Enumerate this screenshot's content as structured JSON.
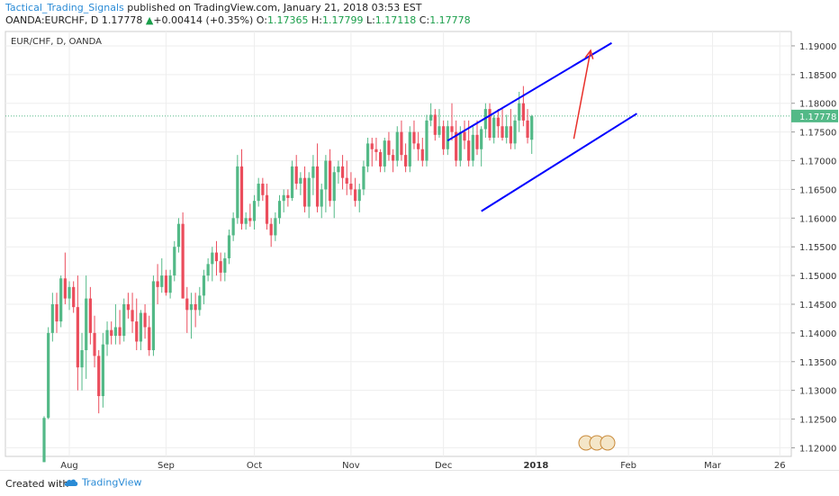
{
  "header": {
    "author": "Tactical_Trading_Signals",
    "published_text": "published on TradingView.com, January 21, 2018 03:53 EST",
    "symbol": "OANDA:EURCHF, D",
    "last": "1.17778",
    "change_arrow": "▲",
    "change": "+0.00414 (+0.35%)",
    "o_label": "O:",
    "o": "1.17365",
    "h_label": "H:",
    "h": "1.17799",
    "l_label": "L:",
    "l": "1.17118",
    "c_label": "C:",
    "c": "1.17778"
  },
  "chart_data": {
    "type": "candlestick",
    "title": "EUR/CHF, D, OANDA",
    "ylim": [
      1.1185,
      1.1925
    ],
    "y_ticks": [
      "1.19000",
      "1.18500",
      "1.18000",
      "1.17500",
      "1.17000",
      "1.16500",
      "1.16000",
      "1.15500",
      "1.15000",
      "1.14500",
      "1.14000",
      "1.13500",
      "1.13000",
      "1.12500",
      "1.12000"
    ],
    "x_ticks": [
      {
        "label": "Aug",
        "index": 6
      },
      {
        "label": "Sep",
        "index": 29
      },
      {
        "label": "Oct",
        "index": 50
      },
      {
        "label": "Nov",
        "index": 73
      },
      {
        "label": "Dec",
        "index": 95
      },
      {
        "label": "2018",
        "index": 117
      },
      {
        "label": "Feb",
        "index": 139
      },
      {
        "label": "Mar",
        "index": 159
      },
      {
        "label": "26",
        "index": 175
      }
    ],
    "last_price_label": "1.17778",
    "colors": {
      "up": "#53b987",
      "down": "#eb4d5c",
      "channel": "#0000ff",
      "arrow": "#e8302a",
      "grid": "#eeeeee",
      "price_line": "#53b987"
    },
    "candles": [
      {
        "o": 1.1175,
        "h": 1.1255,
        "l": 1.1175,
        "c": 1.1252
      },
      {
        "o": 1.1252,
        "h": 1.141,
        "l": 1.125,
        "c": 1.14
      },
      {
        "o": 1.14,
        "h": 1.147,
        "l": 1.1385,
        "c": 1.145
      },
      {
        "o": 1.145,
        "h": 1.147,
        "l": 1.14,
        "c": 1.142
      },
      {
        "o": 1.142,
        "h": 1.15,
        "l": 1.141,
        "c": 1.1495
      },
      {
        "o": 1.1495,
        "h": 1.154,
        "l": 1.145,
        "c": 1.146
      },
      {
        "o": 1.146,
        "h": 1.149,
        "l": 1.144,
        "c": 1.148
      },
      {
        "o": 1.148,
        "h": 1.149,
        "l": 1.1435,
        "c": 1.1445
      },
      {
        "o": 1.1445,
        "h": 1.15,
        "l": 1.13,
        "c": 1.134
      },
      {
        "o": 1.134,
        "h": 1.14,
        "l": 1.13,
        "c": 1.137
      },
      {
        "o": 1.137,
        "h": 1.15,
        "l": 1.132,
        "c": 1.146
      },
      {
        "o": 1.146,
        "h": 1.148,
        "l": 1.138,
        "c": 1.14
      },
      {
        "o": 1.14,
        "h": 1.143,
        "l": 1.134,
        "c": 1.136
      },
      {
        "o": 1.136,
        "h": 1.137,
        "l": 1.126,
        "c": 1.129
      },
      {
        "o": 1.129,
        "h": 1.14,
        "l": 1.127,
        "c": 1.138
      },
      {
        "o": 1.138,
        "h": 1.142,
        "l": 1.136,
        "c": 1.1405
      },
      {
        "o": 1.1405,
        "h": 1.142,
        "l": 1.138,
        "c": 1.1395
      },
      {
        "o": 1.1395,
        "h": 1.145,
        "l": 1.138,
        "c": 1.141
      },
      {
        "o": 1.141,
        "h": 1.144,
        "l": 1.138,
        "c": 1.1395
      },
      {
        "o": 1.1395,
        "h": 1.146,
        "l": 1.1385,
        "c": 1.145
      },
      {
        "o": 1.145,
        "h": 1.147,
        "l": 1.1425,
        "c": 1.144
      },
      {
        "o": 1.144,
        "h": 1.147,
        "l": 1.14,
        "c": 1.142
      },
      {
        "o": 1.142,
        "h": 1.146,
        "l": 1.137,
        "c": 1.1385
      },
      {
        "o": 1.1385,
        "h": 1.144,
        "l": 1.137,
        "c": 1.1435
      },
      {
        "o": 1.1435,
        "h": 1.145,
        "l": 1.139,
        "c": 1.141
      },
      {
        "o": 1.141,
        "h": 1.143,
        "l": 1.136,
        "c": 1.137
      },
      {
        "o": 1.137,
        "h": 1.15,
        "l": 1.136,
        "c": 1.149
      },
      {
        "o": 1.149,
        "h": 1.152,
        "l": 1.145,
        "c": 1.148
      },
      {
        "o": 1.148,
        "h": 1.153,
        "l": 1.147,
        "c": 1.15
      },
      {
        "o": 1.15,
        "h": 1.151,
        "l": 1.1465,
        "c": 1.147
      },
      {
        "o": 1.147,
        "h": 1.151,
        "l": 1.146,
        "c": 1.15
      },
      {
        "o": 1.15,
        "h": 1.156,
        "l": 1.149,
        "c": 1.155
      },
      {
        "o": 1.155,
        "h": 1.16,
        "l": 1.154,
        "c": 1.159
      },
      {
        "o": 1.159,
        "h": 1.161,
        "l": 1.146,
        "c": 1.146
      },
      {
        "o": 1.146,
        "h": 1.148,
        "l": 1.14,
        "c": 1.144
      },
      {
        "o": 1.144,
        "h": 1.147,
        "l": 1.139,
        "c": 1.145
      },
      {
        "o": 1.145,
        "h": 1.147,
        "l": 1.141,
        "c": 1.144
      },
      {
        "o": 1.144,
        "h": 1.148,
        "l": 1.143,
        "c": 1.1465
      },
      {
        "o": 1.1465,
        "h": 1.151,
        "l": 1.145,
        "c": 1.15
      },
      {
        "o": 1.15,
        "h": 1.153,
        "l": 1.149,
        "c": 1.152
      },
      {
        "o": 1.152,
        "h": 1.155,
        "l": 1.149,
        "c": 1.154
      },
      {
        "o": 1.154,
        "h": 1.156,
        "l": 1.15,
        "c": 1.1525
      },
      {
        "o": 1.1525,
        "h": 1.154,
        "l": 1.149,
        "c": 1.1505
      },
      {
        "o": 1.1505,
        "h": 1.154,
        "l": 1.149,
        "c": 1.153
      },
      {
        "o": 1.153,
        "h": 1.158,
        "l": 1.152,
        "c": 1.157
      },
      {
        "o": 1.157,
        "h": 1.161,
        "l": 1.156,
        "c": 1.16
      },
      {
        "o": 1.16,
        "h": 1.171,
        "l": 1.159,
        "c": 1.169
      },
      {
        "o": 1.169,
        "h": 1.172,
        "l": 1.158,
        "c": 1.159
      },
      {
        "o": 1.159,
        "h": 1.161,
        "l": 1.158,
        "c": 1.16
      },
      {
        "o": 1.16,
        "h": 1.1625,
        "l": 1.1585,
        "c": 1.1595
      },
      {
        "o": 1.1595,
        "h": 1.164,
        "l": 1.158,
        "c": 1.163
      },
      {
        "o": 1.163,
        "h": 1.167,
        "l": 1.162,
        "c": 1.166
      },
      {
        "o": 1.166,
        "h": 1.167,
        "l": 1.163,
        "c": 1.164
      },
      {
        "o": 1.164,
        "h": 1.166,
        "l": 1.158,
        "c": 1.159
      },
      {
        "o": 1.159,
        "h": 1.16,
        "l": 1.155,
        "c": 1.157
      },
      {
        "o": 1.157,
        "h": 1.161,
        "l": 1.156,
        "c": 1.16
      },
      {
        "o": 1.16,
        "h": 1.164,
        "l": 1.159,
        "c": 1.163
      },
      {
        "o": 1.163,
        "h": 1.165,
        "l": 1.161,
        "c": 1.164
      },
      {
        "o": 1.164,
        "h": 1.165,
        "l": 1.162,
        "c": 1.1635
      },
      {
        "o": 1.1635,
        "h": 1.17,
        "l": 1.163,
        "c": 1.169
      },
      {
        "o": 1.169,
        "h": 1.171,
        "l": 1.165,
        "c": 1.166
      },
      {
        "o": 1.166,
        "h": 1.168,
        "l": 1.164,
        "c": 1.167
      },
      {
        "o": 1.167,
        "h": 1.169,
        "l": 1.161,
        "c": 1.162
      },
      {
        "o": 1.162,
        "h": 1.168,
        "l": 1.16,
        "c": 1.167
      },
      {
        "o": 1.167,
        "h": 1.171,
        "l": 1.164,
        "c": 1.169
      },
      {
        "o": 1.169,
        "h": 1.173,
        "l": 1.161,
        "c": 1.162
      },
      {
        "o": 1.162,
        "h": 1.166,
        "l": 1.16,
        "c": 1.165
      },
      {
        "o": 1.165,
        "h": 1.171,
        "l": 1.161,
        "c": 1.17
      },
      {
        "o": 1.17,
        "h": 1.172,
        "l": 1.162,
        "c": 1.163
      },
      {
        "o": 1.163,
        "h": 1.169,
        "l": 1.16,
        "c": 1.168
      },
      {
        "o": 1.168,
        "h": 1.17,
        "l": 1.166,
        "c": 1.169
      },
      {
        "o": 1.169,
        "h": 1.171,
        "l": 1.165,
        "c": 1.167
      },
      {
        "o": 1.167,
        "h": 1.17,
        "l": 1.164,
        "c": 1.166
      },
      {
        "o": 1.166,
        "h": 1.168,
        "l": 1.164,
        "c": 1.165
      },
      {
        "o": 1.165,
        "h": 1.167,
        "l": 1.162,
        "c": 1.163
      },
      {
        "o": 1.163,
        "h": 1.166,
        "l": 1.161,
        "c": 1.165
      },
      {
        "o": 1.165,
        "h": 1.17,
        "l": 1.164,
        "c": 1.169
      },
      {
        "o": 1.169,
        "h": 1.174,
        "l": 1.168,
        "c": 1.173
      },
      {
        "o": 1.173,
        "h": 1.174,
        "l": 1.169,
        "c": 1.172
      },
      {
        "o": 1.172,
        "h": 1.174,
        "l": 1.17,
        "c": 1.1715
      },
      {
        "o": 1.1715,
        "h": 1.172,
        "l": 1.168,
        "c": 1.169
      },
      {
        "o": 1.169,
        "h": 1.174,
        "l": 1.168,
        "c": 1.1735
      },
      {
        "o": 1.1735,
        "h": 1.175,
        "l": 1.17,
        "c": 1.171
      },
      {
        "o": 1.171,
        "h": 1.172,
        "l": 1.168,
        "c": 1.17
      },
      {
        "o": 1.17,
        "h": 1.176,
        "l": 1.169,
        "c": 1.175
      },
      {
        "o": 1.175,
        "h": 1.177,
        "l": 1.17,
        "c": 1.171
      },
      {
        "o": 1.171,
        "h": 1.173,
        "l": 1.168,
        "c": 1.169
      },
      {
        "o": 1.169,
        "h": 1.176,
        "l": 1.168,
        "c": 1.175
      },
      {
        "o": 1.175,
        "h": 1.177,
        "l": 1.172,
        "c": 1.173
      },
      {
        "o": 1.173,
        "h": 1.175,
        "l": 1.17,
        "c": 1.172
      },
      {
        "o": 1.172,
        "h": 1.174,
        "l": 1.169,
        "c": 1.17
      },
      {
        "o": 1.17,
        "h": 1.178,
        "l": 1.169,
        "c": 1.177
      },
      {
        "o": 1.177,
        "h": 1.18,
        "l": 1.176,
        "c": 1.178
      },
      {
        "o": 1.178,
        "h": 1.179,
        "l": 1.1735,
        "c": 1.1745
      },
      {
        "o": 1.1745,
        "h": 1.179,
        "l": 1.174,
        "c": 1.176
      },
      {
        "o": 1.176,
        "h": 1.177,
        "l": 1.171,
        "c": 1.172
      },
      {
        "o": 1.172,
        "h": 1.177,
        "l": 1.171,
        "c": 1.176
      },
      {
        "o": 1.176,
        "h": 1.18,
        "l": 1.1735,
        "c": 1.175
      },
      {
        "o": 1.175,
        "h": 1.177,
        "l": 1.169,
        "c": 1.17
      },
      {
        "o": 1.17,
        "h": 1.176,
        "l": 1.169,
        "c": 1.175
      },
      {
        "o": 1.175,
        "h": 1.177,
        "l": 1.172,
        "c": 1.1735
      },
      {
        "o": 1.1735,
        "h": 1.177,
        "l": 1.169,
        "c": 1.17
      },
      {
        "o": 1.17,
        "h": 1.176,
        "l": 1.169,
        "c": 1.1745
      },
      {
        "o": 1.1745,
        "h": 1.177,
        "l": 1.171,
        "c": 1.172
      },
      {
        "o": 1.172,
        "h": 1.176,
        "l": 1.169,
        "c": 1.1755
      },
      {
        "o": 1.1755,
        "h": 1.18,
        "l": 1.174,
        "c": 1.179
      },
      {
        "o": 1.179,
        "h": 1.18,
        "l": 1.1735,
        "c": 1.174
      },
      {
        "o": 1.174,
        "h": 1.178,
        "l": 1.173,
        "c": 1.1775
      },
      {
        "o": 1.1775,
        "h": 1.179,
        "l": 1.174,
        "c": 1.176
      },
      {
        "o": 1.176,
        "h": 1.179,
        "l": 1.1735,
        "c": 1.174
      },
      {
        "o": 1.174,
        "h": 1.178,
        "l": 1.173,
        "c": 1.176
      },
      {
        "o": 1.176,
        "h": 1.179,
        "l": 1.172,
        "c": 1.173
      },
      {
        "o": 1.173,
        "h": 1.178,
        "l": 1.172,
        "c": 1.177
      },
      {
        "o": 1.177,
        "h": 1.182,
        "l": 1.175,
        "c": 1.18
      },
      {
        "o": 1.18,
        "h": 1.183,
        "l": 1.176,
        "c": 1.177
      },
      {
        "o": 1.177,
        "h": 1.179,
        "l": 1.173,
        "c": 1.174
      },
      {
        "o": 1.17365,
        "h": 1.17799,
        "l": 1.17118,
        "c": 1.17778
      }
    ],
    "channel_upper": [
      [
        96,
        1.1735
      ],
      [
        135,
        1.1905
      ]
    ],
    "channel_lower": [
      [
        104,
        1.1612
      ],
      [
        141,
        1.1782
      ]
    ],
    "arrow": {
      "from": [
        126,
        1.1738
      ],
      "to": [
        130,
        1.1892
      ]
    },
    "current_price": 1.17778
  },
  "footer": {
    "created_with": "Created with",
    "brand": "TradingView"
  }
}
